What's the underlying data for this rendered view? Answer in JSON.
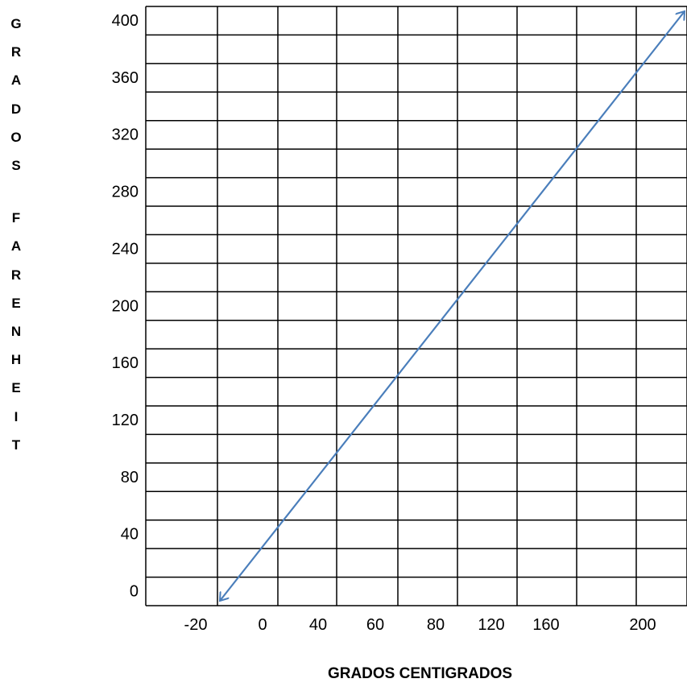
{
  "chart_data": {
    "type": "line",
    "title": "",
    "xlabel": "GRADOS CENTIGRADOS",
    "ylabel": "GRADOS FARENHEIT",
    "x_tick_labels": [
      "-20",
      "0",
      "40",
      "60",
      "80",
      "120",
      "160",
      "200"
    ],
    "y_tick_labels": [
      "400",
      "360",
      "320",
      "280",
      "240",
      "200",
      "160",
      "120",
      "80",
      "40",
      "0"
    ],
    "ylim": [
      0,
      410
    ],
    "grid": true,
    "series": [
      {
        "x": [
          -10,
          200
        ],
        "y": [
          0,
          410
        ],
        "arrows": "both",
        "color": "#4A7EBB"
      }
    ]
  }
}
